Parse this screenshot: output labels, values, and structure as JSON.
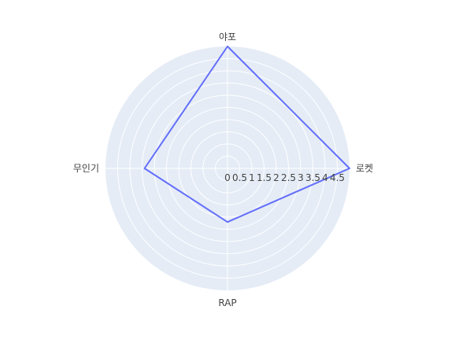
{
  "chart_data": {
    "type": "radar",
    "categories": [
      "로켓",
      "야포",
      "무인기",
      "RAP"
    ],
    "series": [
      {
        "values": [
          5,
          5,
          3.4,
          2.2
        ]
      }
    ],
    "radial_range": [
      0,
      5
    ],
    "radial_tick_labels": [
      "0",
      "0.5",
      "1",
      "1.5",
      "2",
      "2.5",
      "3",
      "3.5",
      "4",
      "4.5"
    ],
    "grid": true,
    "colors": {
      "background": "#e5ecf6",
      "grid": "#ffffff",
      "series": "#636efa",
      "text": "#444444"
    }
  }
}
